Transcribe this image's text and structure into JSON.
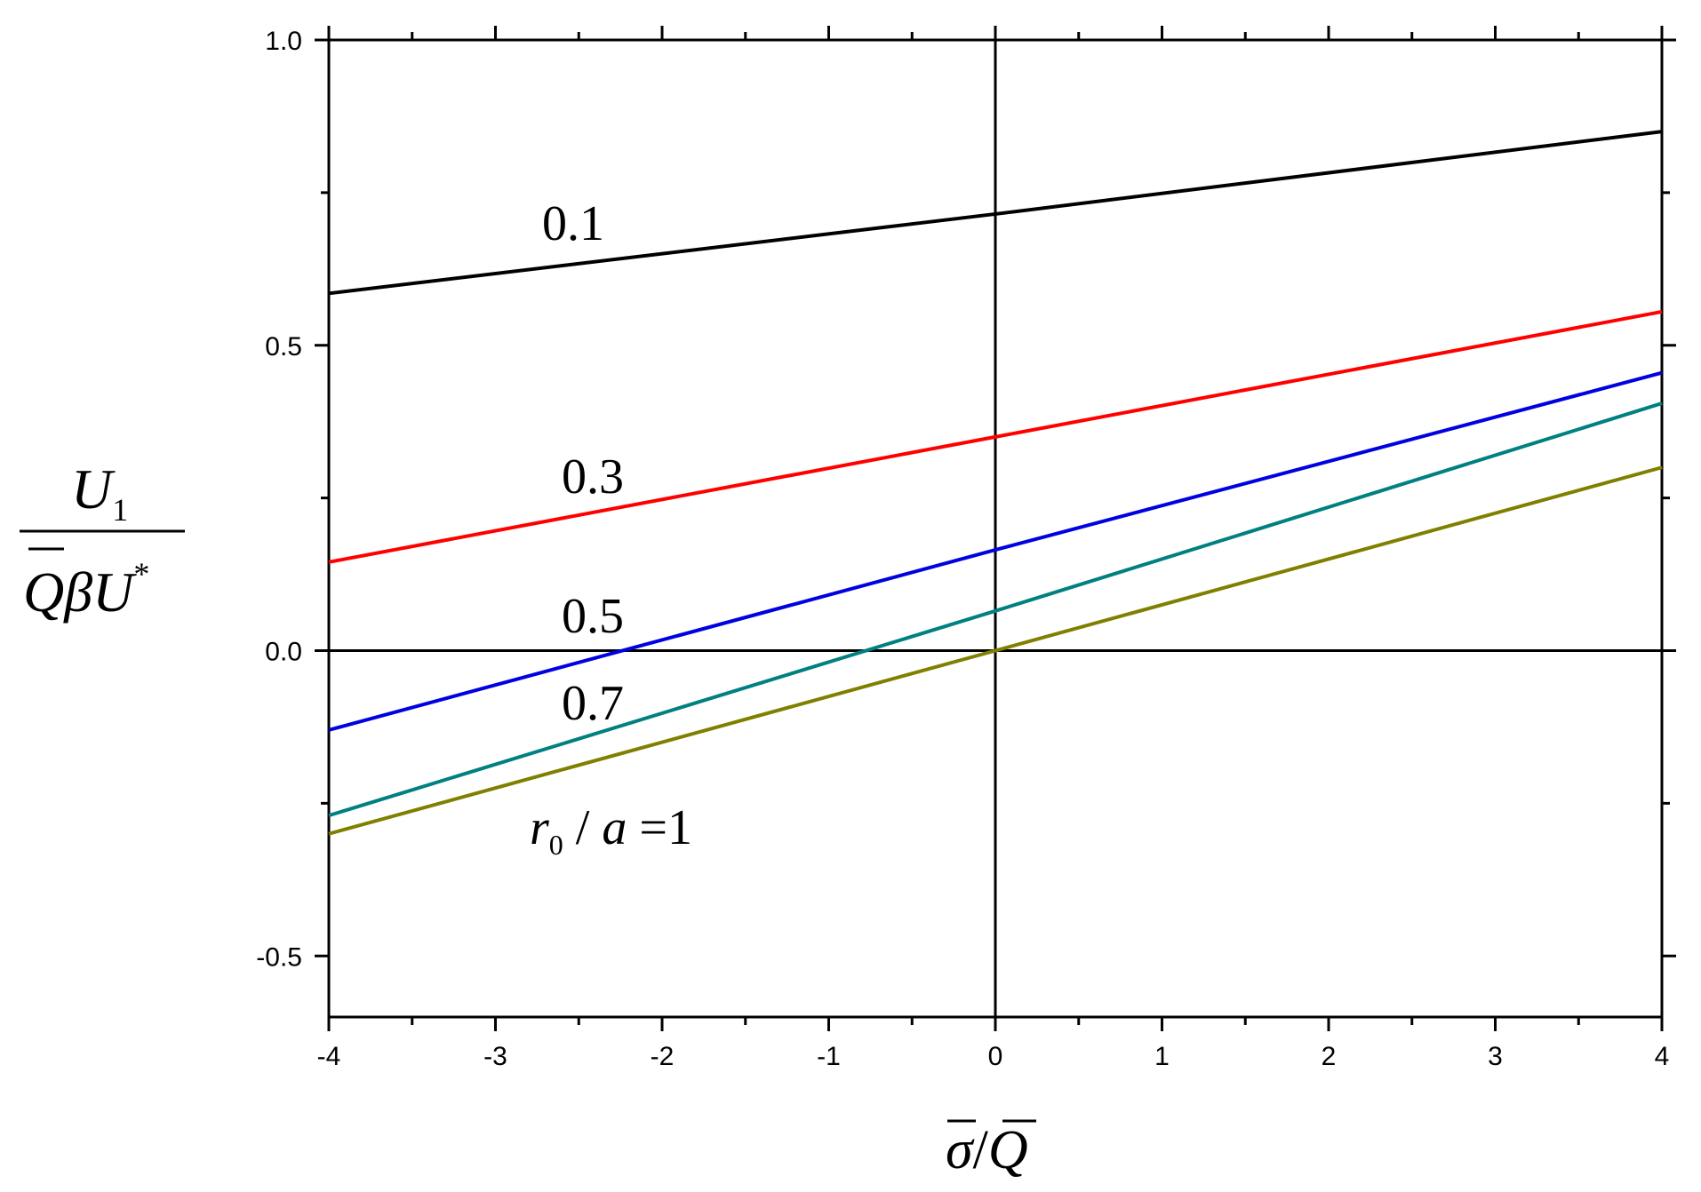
{
  "chart_data": {
    "type": "line",
    "title": "",
    "xlabel": "σ̄/Q̄",
    "ylabel": "U1 / (Q̄βU*)",
    "xlim": [
      -4,
      4
    ],
    "ylim": [
      -0.6,
      1.0
    ],
    "x_ticks": [
      -4,
      -3,
      -2,
      -1,
      0,
      1,
      2,
      3,
      4
    ],
    "x_tick_labels": [
      "-4",
      "-3",
      "-2",
      "-1",
      "0",
      "1",
      "2",
      "3",
      "4"
    ],
    "y_ticks": [
      -0.5,
      0.0,
      0.5,
      1.0
    ],
    "y_tick_labels": [
      "-0.5",
      "0.0",
      "0.5",
      "1.0"
    ],
    "reference_lines": [
      {
        "axis": "x",
        "value": 0
      },
      {
        "axis": "y",
        "value": 0
      }
    ],
    "grid": false,
    "legend": "inline labels",
    "series": [
      {
        "label": "0.1",
        "color": "#000000",
        "x": [
          -4,
          0,
          4
        ],
        "y": [
          0.585,
          0.715,
          0.85
        ]
      },
      {
        "label": "0.3",
        "color": "#ff0000",
        "x": [
          -4,
          0,
          4
        ],
        "y": [
          0.145,
          0.35,
          0.555
        ]
      },
      {
        "label": "0.5",
        "color": "#0000e0",
        "x": [
          -4,
          0,
          4
        ],
        "y": [
          -0.13,
          0.165,
          0.455
        ]
      },
      {
        "label": "0.7",
        "color": "#008080",
        "x": [
          -4,
          0,
          4
        ],
        "y": [
          -0.27,
          0.065,
          0.405
        ]
      },
      {
        "label": "r0 / a = 1",
        "color": "#808000",
        "x": [
          -4,
          0,
          4
        ],
        "y": [
          -0.3,
          0.0,
          0.3
        ]
      }
    ]
  }
}
